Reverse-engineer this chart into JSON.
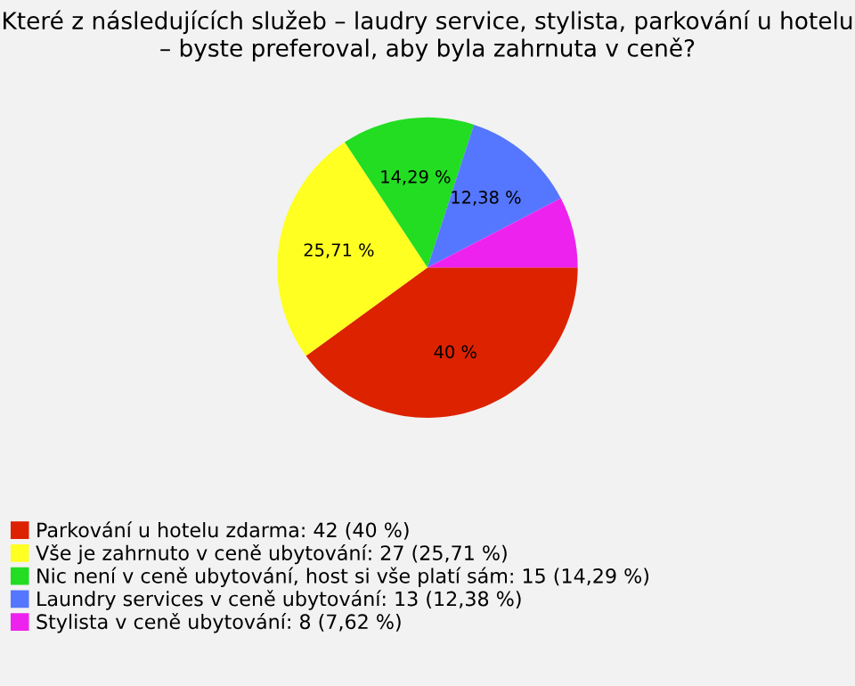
{
  "chart_data": {
    "type": "pie",
    "title": "Které z následujících služeb – laudry service, stylista, parkování u hotelu – byste preferoval, aby byla zahrnuta v ceně?",
    "categories": [
      "Parkování u hotelu zdarma: 42 (40 %)",
      "Vše je zahrnuto v ceně ubytování: 27 (25,71 %)",
      "Nic není v ceně ubytování, host si vše platí sám: 15 (14,29 %)",
      "Laundry services v ceně ubytování: 13 (12,38 %)",
      "Stylista v ceně ubytování: 8 (7,62 %)"
    ],
    "values": [
      40,
      25.71,
      14.29,
      12.38,
      7.62
    ],
    "value_labels": [
      "40 %",
      "25,71 %",
      "14,29 %",
      "12,38 %",
      null
    ],
    "colors": [
      "#dd2200",
      "#ffff22",
      "#22dd22",
      "#5577ff",
      "#ee22ee"
    ],
    "legend": "bottom left"
  }
}
